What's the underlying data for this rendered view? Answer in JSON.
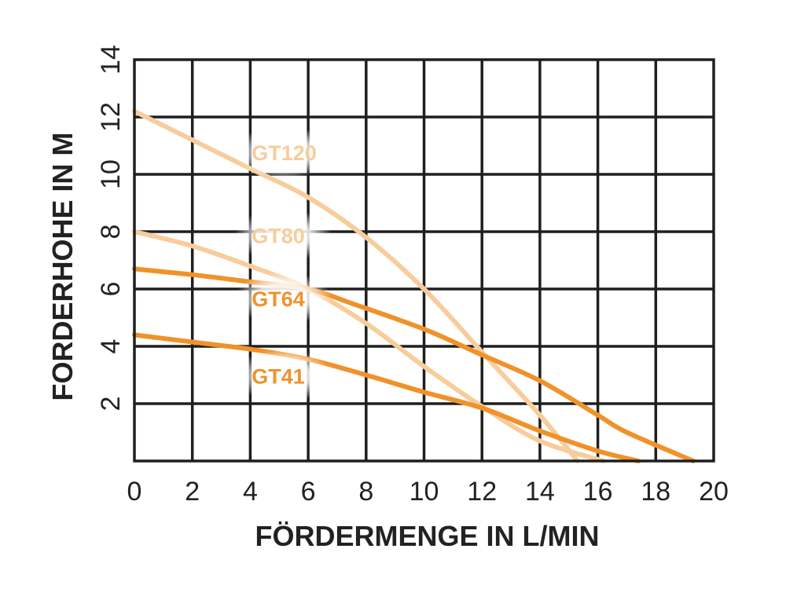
{
  "chart_data": {
    "type": "line",
    "title": "",
    "xlabel": "FÖRDERMENGE IN L/MIN",
    "ylabel": "FORDERHOHE IN M",
    "xlim": [
      0,
      20
    ],
    "ylim": [
      0,
      14
    ],
    "x_ticks": [
      "0",
      "2",
      "4",
      "6",
      "8",
      "10",
      "12",
      "14",
      "16",
      "18",
      "20"
    ],
    "y_ticks": [
      "2",
      "4",
      "6",
      "8",
      "10",
      "12",
      "14"
    ],
    "grid": true,
    "legend": "inline labels",
    "series": [
      {
        "name": "GT120",
        "color": "#f7cd9c",
        "points": [
          [
            0,
            12.2
          ],
          [
            2,
            11.2
          ],
          [
            4,
            10.2
          ],
          [
            6,
            9.2
          ],
          [
            8,
            7.8
          ],
          [
            10,
            6.0
          ],
          [
            12,
            3.8
          ],
          [
            14,
            1.6
          ],
          [
            15.3,
            0
          ]
        ]
      },
      {
        "name": "GT80",
        "color": "#f7cd9c",
        "points": [
          [
            0,
            8.0
          ],
          [
            2,
            7.5
          ],
          [
            4,
            6.8
          ],
          [
            6,
            6.0
          ],
          [
            8,
            4.8
          ],
          [
            10,
            3.3
          ],
          [
            12,
            1.9
          ],
          [
            14,
            0.7
          ],
          [
            16.2,
            0
          ]
        ]
      },
      {
        "name": "GT64",
        "color": "#f0922a",
        "points": [
          [
            0,
            6.7
          ],
          [
            2,
            6.5
          ],
          [
            4,
            6.25
          ],
          [
            6,
            6.0
          ],
          [
            7.5,
            5.5
          ],
          [
            10,
            4.6
          ],
          [
            12,
            3.7
          ],
          [
            14,
            2.8
          ],
          [
            16,
            1.6
          ],
          [
            17,
            1.0
          ],
          [
            19.3,
            0
          ]
        ]
      },
      {
        "name": "GT41",
        "color": "#f0922a",
        "points": [
          [
            0,
            4.4
          ],
          [
            2,
            4.15
          ],
          [
            4,
            3.9
          ],
          [
            6,
            3.55
          ],
          [
            8,
            3.0
          ],
          [
            10,
            2.4
          ],
          [
            12,
            1.85
          ],
          [
            14,
            1.05
          ],
          [
            16,
            0.35
          ],
          [
            17.4,
            0
          ]
        ]
      }
    ],
    "labels": [
      {
        "series": "GT120",
        "text": "GT120",
        "x": 4.05,
        "y": 10.5
      },
      {
        "series": "GT80",
        "text": "GT80",
        "x": 4.05,
        "y": 7.6
      },
      {
        "series": "GT64",
        "text": "GT64",
        "x": 4.05,
        "y": 5.4
      },
      {
        "series": "GT41",
        "text": "GT41",
        "x": 4.05,
        "y": 2.7
      }
    ]
  }
}
